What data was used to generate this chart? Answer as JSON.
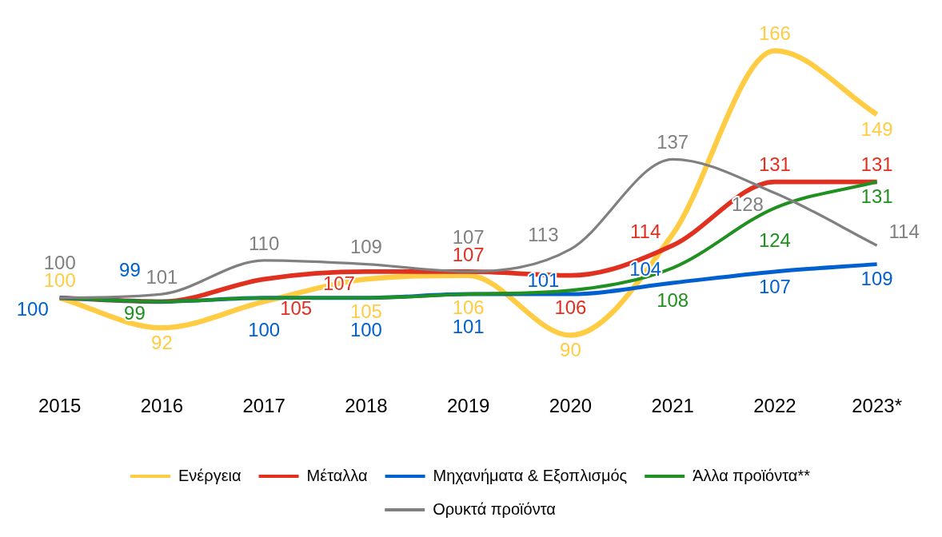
{
  "chart_data": {
    "type": "line",
    "categories": [
      "2015",
      "2016",
      "2017",
      "2018",
      "2019",
      "2020",
      "2021",
      "2022",
      "2023*"
    ],
    "series": [
      {
        "name": "Ενέργεια",
        "color": "#ffcc44",
        "values": [
          100,
          92,
          99,
          105,
          106,
          90,
          117,
          166,
          149
        ],
        "value_labels": [
          "100",
          "92",
          null,
          "105",
          "106",
          "90",
          null,
          "166",
          "149"
        ]
      },
      {
        "name": "Μέταλλα",
        "color": "#e03020",
        "values": [
          100,
          99,
          105,
          107,
          107,
          106,
          114,
          131,
          131
        ],
        "value_labels": [
          null,
          null,
          "105",
          "107",
          "107",
          "106",
          "114",
          "131",
          "131"
        ]
      },
      {
        "name": "Μηχανήματα & Εξοπλισμός",
        "color": "#0060d0",
        "values": [
          100,
          99,
          100,
          100,
          101,
          101,
          104,
          107,
          109
        ],
        "value_labels": [
          "100",
          "99",
          "100",
          "100",
          "101",
          "101",
          "104",
          "107",
          "109"
        ]
      },
      {
        "name": "Άλλα προϊόντα**",
        "color": "#209020",
        "values": [
          100,
          99,
          100,
          100,
          101,
          102,
          108,
          124,
          131
        ],
        "value_labels": [
          null,
          "99",
          null,
          null,
          null,
          null,
          "108",
          "124",
          "131"
        ]
      },
      {
        "name": "Ορυκτά προϊόντα",
        "color": "#808080",
        "values": [
          100,
          101,
          110,
          109,
          107,
          113,
          137,
          128,
          114
        ],
        "value_labels": [
          "100",
          "101",
          "110",
          "109",
          "107",
          "113",
          "137",
          "128",
          "114"
        ]
      }
    ],
    "grid": false,
    "legend": "bottom",
    "marker": "none",
    "line_style": "solid"
  }
}
